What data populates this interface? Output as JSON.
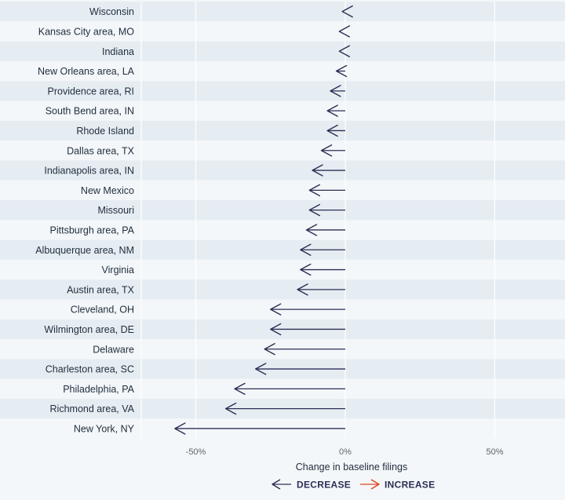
{
  "chart_data": {
    "type": "arrow",
    "xlabel": "Change in baseline filings",
    "xlim": [
      -68,
      72
    ],
    "xticks": [
      -50,
      0,
      50
    ],
    "xtick_labels": [
      "-50%",
      "0%",
      "50%"
    ],
    "grid": true,
    "legend_position": "bottom",
    "legend": [
      {
        "label": "DECREASE",
        "color": "#2b2f55"
      },
      {
        "label": "INCREASE",
        "color": "#e0451f"
      }
    ],
    "categories": [
      "Wisconsin",
      "Kansas City area, MO",
      "Indiana",
      "New Orleans area, LA",
      "Providence area, RI",
      "South Bend area, IN",
      "Rhode Island",
      "Dallas area, TX",
      "Indianapolis area, IN",
      "New Mexico",
      "Missouri",
      "Pittsburgh area, PA",
      "Albuquerque area, NM",
      "Virginia",
      "Austin area, TX",
      "Cleveland, OH",
      "Wilmington area, DE",
      "Delaware",
      "Charleston area, SC",
      "Philadelphia, PA",
      "Richmond area, VA",
      "New York, NY"
    ],
    "values": [
      -1,
      -2,
      -2,
      -3,
      -5,
      -6,
      -6,
      -8,
      -11,
      -12,
      -12,
      -13,
      -15,
      -15,
      -16,
      -25,
      -25,
      -27,
      -30,
      -37,
      -40,
      -57
    ]
  }
}
